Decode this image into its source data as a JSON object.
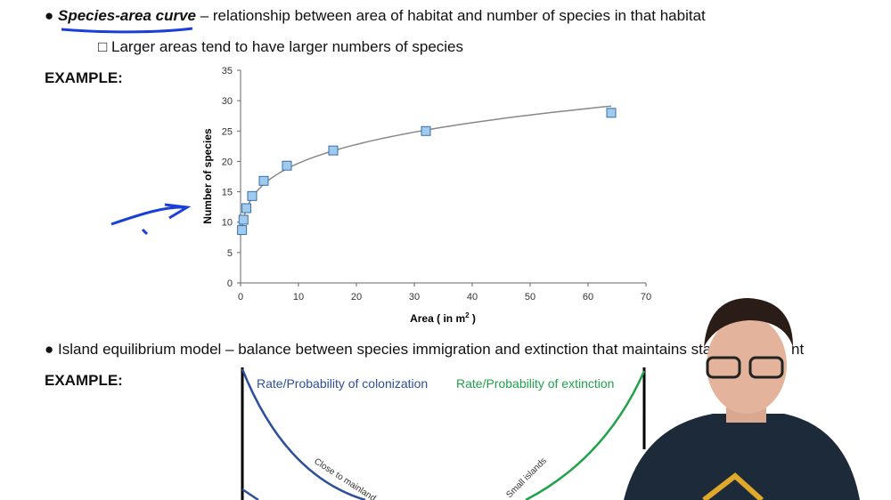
{
  "bullet1": {
    "term": "Species-area curve",
    "rest": " – relationship between area of habitat and number of species in that habitat",
    "sub": "Larger areas tend to have larger numbers of species"
  },
  "example_label": "EXAMPLE:",
  "bullet2": {
    "text": "Island equilibrium model – balance between species immigration and extinction that maintains stab",
    "tail": "nt"
  },
  "diagram": {
    "colonization": "Rate/Probability of colonization",
    "extinction": "Rate/Probability of extinction",
    "close": "Close to mainland",
    "small": "Small islands",
    "colors": {
      "colonization": "#2e4f9a",
      "extinction": "#1fa24a"
    }
  },
  "chart_data": {
    "type": "scatter",
    "xlabel": "Area ( in m",
    "xlabel_sup": "2",
    "xlabel_end": " )",
    "ylabel": "Number of species",
    "xlim": [
      0,
      70
    ],
    "ylim": [
      0,
      35
    ],
    "xticks": [
      "0",
      "10",
      "20",
      "30",
      "40",
      "50",
      "60",
      "70"
    ],
    "yticks": [
      "0",
      "5",
      "10",
      "15",
      "20",
      "25",
      "30",
      "35"
    ],
    "points": [
      [
        0.25,
        8.7
      ],
      [
        0.5,
        10.4
      ],
      [
        1,
        12.3
      ],
      [
        2,
        14.3
      ],
      [
        4,
        16.8
      ],
      [
        8,
        19.3
      ],
      [
        16,
        21.8
      ],
      [
        32,
        25
      ],
      [
        64,
        28
      ]
    ],
    "trendline": "power",
    "marker_color": "#9fcbef"
  }
}
